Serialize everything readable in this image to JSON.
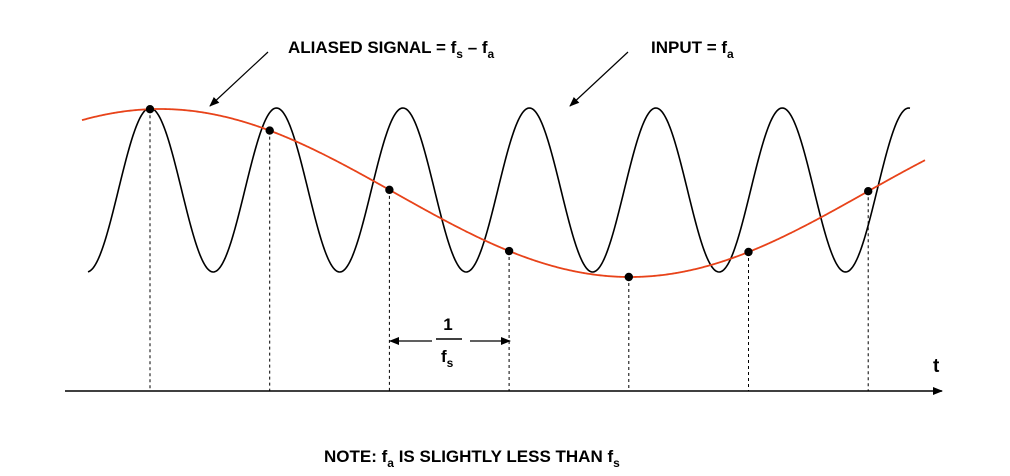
{
  "labels": {
    "aliased": {
      "main": "ALIASED SIGNAL = f",
      "sub1": "s",
      "dash": " – f",
      "sub2": "a"
    },
    "input": {
      "main": "INPUT = f",
      "sub": "a"
    },
    "period": {
      "numerator": "1",
      "denominator": "f",
      "denominator_sub": "s"
    },
    "axis_t": "t",
    "note": {
      "pre": "NOTE: f",
      "sub1": "a",
      "mid": " IS SLIGHTLY LESS THAN f",
      "sub2": "s"
    }
  },
  "colors": {
    "input_wave": "#000000",
    "aliased_wave": "#E8431A",
    "sample_dot": "#000000"
  },
  "signal": {
    "input_cycles": 6.5,
    "aliased_cycles_over_span": 0.5,
    "sample_count": 7
  }
}
